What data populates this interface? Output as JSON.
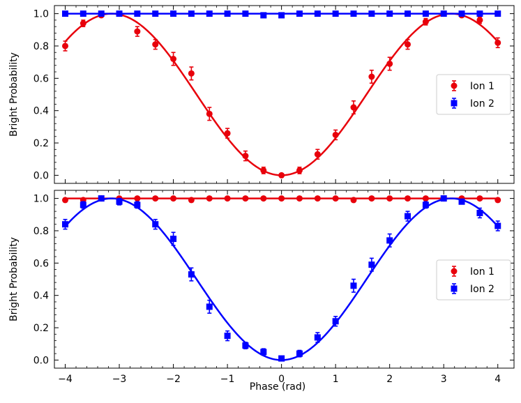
{
  "colors": {
    "ion1": "#e8000b",
    "ion2": "#0000ff",
    "frame": "#000000"
  },
  "shared_xlabel": "Phase (rad)",
  "chart_data": [
    {
      "type": "scatter",
      "panel": "top",
      "xlabel": "",
      "ylabel": "Bright Probability",
      "xlim": [
        -4.2,
        4.3
      ],
      "ylim": [
        -0.05,
        1.05
      ],
      "xticks": [
        -4,
        -3,
        -2,
        -1,
        0,
        1,
        2,
        3,
        4
      ],
      "yticks": [
        0.0,
        0.2,
        0.4,
        0.6,
        0.8,
        1.0
      ],
      "xtick_labels": [],
      "ytick_labels": [
        "0.0",
        "0.2",
        "0.4",
        "0.6",
        "0.8",
        "1.0"
      ],
      "legend": {
        "position": "right",
        "entries": [
          "Ion 1",
          "Ion 2"
        ]
      },
      "x": [
        -4,
        -3.667,
        -3.333,
        -3,
        -2.667,
        -2.333,
        -2,
        -1.667,
        -1.333,
        -1,
        -0.667,
        -0.333,
        0,
        0.333,
        0.667,
        1,
        1.333,
        1.667,
        2,
        2.333,
        2.667,
        3,
        3.333,
        3.667,
        4
      ],
      "series": [
        {
          "name": "Ion 1",
          "marker": "circle",
          "color": "#e8000b",
          "values": [
            0.8,
            0.94,
            0.99,
            1.0,
            0.89,
            0.81,
            0.72,
            0.63,
            0.38,
            0.26,
            0.12,
            0.03,
            0.0,
            0.03,
            0.13,
            0.25,
            0.42,
            0.61,
            0.69,
            0.81,
            0.95,
            1.0,
            0.99,
            0.96,
            0.82
          ],
          "errors": [
            0.03,
            0.02,
            0.01,
            0.01,
            0.03,
            0.03,
            0.04,
            0.04,
            0.04,
            0.03,
            0.03,
            0.02,
            0.01,
            0.02,
            0.03,
            0.03,
            0.04,
            0.04,
            0.04,
            0.03,
            0.02,
            0.01,
            0.01,
            0.02,
            0.03
          ],
          "fit": "0.5*(1-cos(x))"
        },
        {
          "name": "Ion 2",
          "marker": "square",
          "color": "#0000ff",
          "values": [
            1.0,
            1.0,
            1.0,
            1.0,
            1.0,
            1.0,
            1.0,
            1.0,
            1.0,
            1.0,
            1.0,
            0.99,
            0.99,
            1.0,
            1.0,
            1.0,
            1.0,
            1.0,
            1.0,
            1.0,
            1.0,
            1.0,
            1.0,
            1.0,
            1.0
          ],
          "errors": [
            0.005,
            0.005,
            0.005,
            0.005,
            0.005,
            0.005,
            0.005,
            0.005,
            0.005,
            0.005,
            0.005,
            0.005,
            0.005,
            0.005,
            0.005,
            0.005,
            0.005,
            0.005,
            0.005,
            0.005,
            0.005,
            0.005,
            0.005,
            0.005,
            0.005
          ],
          "fit": "1.0"
        }
      ]
    },
    {
      "type": "scatter",
      "panel": "bottom",
      "xlabel": "Phase (rad)",
      "ylabel": "Bright Probability",
      "xlim": [
        -4.2,
        4.3
      ],
      "ylim": [
        -0.05,
        1.05
      ],
      "xticks": [
        -4,
        -3,
        -2,
        -1,
        0,
        1,
        2,
        3,
        4
      ],
      "yticks": [
        0.0,
        0.2,
        0.4,
        0.6,
        0.8,
        1.0
      ],
      "xtick_labels": [
        "−4",
        "−3",
        "−2",
        "−1",
        "0",
        "1",
        "2",
        "3",
        "4"
      ],
      "ytick_labels": [
        "0.0",
        "0.2",
        "0.4",
        "0.6",
        "0.8",
        "1.0"
      ],
      "legend": {
        "position": "right",
        "entries": [
          "Ion 1",
          "Ion 2"
        ]
      },
      "x": [
        -4,
        -3.667,
        -3.333,
        -3,
        -2.667,
        -2.333,
        -2,
        -1.667,
        -1.333,
        -1,
        -0.667,
        -0.333,
        0,
        0.333,
        0.667,
        1,
        1.333,
        1.667,
        2,
        2.333,
        2.667,
        3,
        3.333,
        3.667,
        4
      ],
      "series": [
        {
          "name": "Ion 1",
          "marker": "circle",
          "color": "#e8000b",
          "values": [
            0.99,
            0.99,
            1.0,
            1.0,
            1.0,
            1.0,
            1.0,
            0.99,
            1.0,
            1.0,
            1.0,
            1.0,
            1.0,
            1.0,
            1.0,
            1.0,
            0.99,
            1.0,
            1.0,
            1.0,
            1.0,
            1.0,
            1.0,
            1.0,
            0.99
          ],
          "errors": [
            0.005,
            0.005,
            0.005,
            0.005,
            0.005,
            0.005,
            0.005,
            0.005,
            0.005,
            0.005,
            0.005,
            0.005,
            0.005,
            0.005,
            0.005,
            0.005,
            0.005,
            0.005,
            0.005,
            0.005,
            0.005,
            0.005,
            0.005,
            0.005,
            0.005
          ],
          "fit": "1.0"
        },
        {
          "name": "Ion 2",
          "marker": "square",
          "color": "#0000ff",
          "values": [
            0.84,
            0.96,
            1.0,
            0.98,
            0.96,
            0.84,
            0.75,
            0.53,
            0.33,
            0.15,
            0.09,
            0.05,
            0.01,
            0.04,
            0.14,
            0.24,
            0.46,
            0.59,
            0.74,
            0.89,
            0.96,
            1.0,
            0.98,
            0.91,
            0.83
          ],
          "errors": [
            0.03,
            0.02,
            0.01,
            0.02,
            0.02,
            0.03,
            0.04,
            0.04,
            0.04,
            0.03,
            0.02,
            0.02,
            0.01,
            0.02,
            0.03,
            0.03,
            0.04,
            0.04,
            0.04,
            0.03,
            0.02,
            0.01,
            0.01,
            0.03,
            0.03
          ],
          "fit": "0.5*(1-cos(x))"
        }
      ]
    }
  ]
}
